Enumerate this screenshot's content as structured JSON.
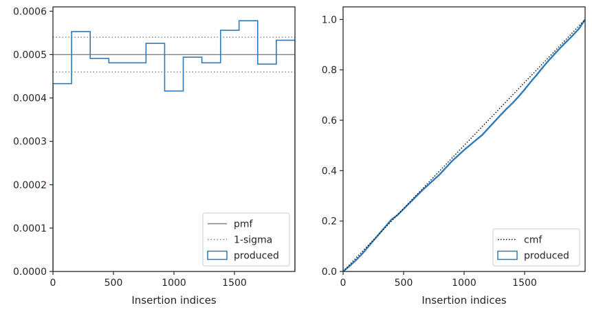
{
  "colors": {
    "produced": "#2b7bba",
    "pmf": "#808080",
    "sigma": "#808080",
    "cmf": "#000000",
    "axes": "#262626"
  },
  "chart_data": [
    {
      "type": "step",
      "title": "",
      "xlabel": "Insertion indices",
      "ylabel": "",
      "xlim": [
        0,
        2000
      ],
      "ylim": [
        0,
        0.00061
      ],
      "xticks": [
        0,
        500,
        1000,
        1500
      ],
      "xtick_labels": [
        "0",
        "500",
        "1000",
        "1500"
      ],
      "yticks": [
        0,
        0.0001,
        0.0002,
        0.0003,
        0.0004,
        0.0005,
        0.0006
      ],
      "ytick_labels": [
        "0.0000",
        "0.0001",
        "0.0002",
        "0.0003",
        "0.0004",
        "0.0005",
        "0.0006"
      ],
      "grid": false,
      "legend_position": "lower-right",
      "series": [
        {
          "name": "pmf",
          "style": "solid",
          "y": 0.0005
        },
        {
          "name": "1-sigma",
          "style": "dotted",
          "y_values": [
            0.00054,
            0.00046
          ]
        },
        {
          "name": "produced",
          "style": "step",
          "bin_edges": [
            0,
            154,
            308,
            462,
            615,
            769,
            923,
            1077,
            1231,
            1385,
            1538,
            1692,
            1846,
            2000
          ],
          "values": [
            0.000433,
            0.000553,
            0.000491,
            0.000481,
            0.000481,
            0.000526,
            0.000416,
            0.000494,
            0.000481,
            0.000556,
            0.000578,
            0.000478,
            0.000533
          ]
        }
      ]
    },
    {
      "type": "line",
      "title": "",
      "xlabel": "Insertion indices",
      "ylabel": "",
      "xlim": [
        0,
        2000
      ],
      "ylim": [
        0,
        1.05
      ],
      "xticks": [
        0,
        500,
        1000,
        1500
      ],
      "xtick_labels": [
        "0",
        "500",
        "1000",
        "1500"
      ],
      "yticks": [
        0,
        0.2,
        0.4,
        0.6,
        0.8,
        1.0
      ],
      "ytick_labels": [
        "0.0",
        "0.2",
        "0.4",
        "0.6",
        "0.8",
        "1.0"
      ],
      "grid": false,
      "legend_position": "lower-right",
      "series": [
        {
          "name": "cmf",
          "style": "dotted",
          "x": [
            0,
            2000
          ],
          "y": [
            0,
            1.0
          ]
        },
        {
          "name": "produced",
          "style": "solid",
          "x": [
            0,
            50,
            100,
            150,
            200,
            250,
            300,
            350,
            400,
            450,
            500,
            550,
            600,
            650,
            700,
            750,
            800,
            850,
            900,
            950,
            1000,
            1050,
            1100,
            1150,
            1200,
            1250,
            1300,
            1350,
            1400,
            1450,
            1500,
            1550,
            1600,
            1650,
            1700,
            1750,
            1800,
            1850,
            1900,
            1950,
            2000
          ],
          "y": [
            0,
            0.02,
            0.042,
            0.066,
            0.094,
            0.122,
            0.15,
            0.178,
            0.206,
            0.224,
            0.248,
            0.272,
            0.296,
            0.32,
            0.342,
            0.364,
            0.386,
            0.412,
            0.438,
            0.46,
            0.482,
            0.502,
            0.522,
            0.542,
            0.568,
            0.594,
            0.62,
            0.645,
            0.668,
            0.694,
            0.722,
            0.752,
            0.78,
            0.81,
            0.838,
            0.864,
            0.89,
            0.914,
            0.938,
            0.964,
            1.0
          ]
        }
      ]
    }
  ]
}
